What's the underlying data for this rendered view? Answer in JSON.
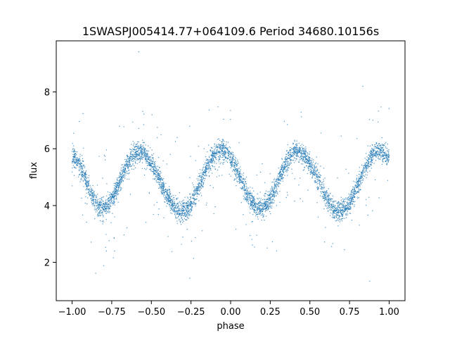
{
  "chart_data": {
    "type": "scatter",
    "title": "1SWASPJ005414.77+064109.6 Period 34680.10156s",
    "xlabel": "phase",
    "ylabel": "flux",
    "xlim": [
      -1.1,
      1.1
    ],
    "ylim": [
      0.65,
      9.8
    ],
    "x_ticks": [
      -1.0,
      -0.75,
      -0.5,
      -0.25,
      0.0,
      0.25,
      0.5,
      0.75,
      1.0
    ],
    "x_tick_labels": [
      "−1.00",
      "−0.75",
      "−0.50",
      "−0.25",
      "0.00",
      "0.25",
      "0.50",
      "0.75",
      "1.00"
    ],
    "y_ticks": [
      2,
      4,
      6,
      8
    ],
    "y_tick_labels": [
      "2",
      "4",
      "6",
      "8"
    ],
    "grid": false,
    "point_color": "#1f77b4",
    "curve": {
      "description_points": [
        {
          "phase": -1.0,
          "flux": 5.7
        },
        {
          "phase": -0.81,
          "flux": 3.9
        },
        {
          "phase": -0.58,
          "flux": 5.9
        },
        {
          "phase": -0.31,
          "flux": 3.8
        },
        {
          "phase": -0.06,
          "flux": 5.95
        },
        {
          "phase": 0.19,
          "flux": 3.9
        },
        {
          "phase": 0.42,
          "flux": 5.9
        },
        {
          "phase": 0.69,
          "flux": 3.8
        },
        {
          "phase": 0.94,
          "flux": 5.95
        },
        {
          "phase": 1.0,
          "flux": 5.7
        }
      ],
      "scatter_sigma": 0.18
    }
  }
}
